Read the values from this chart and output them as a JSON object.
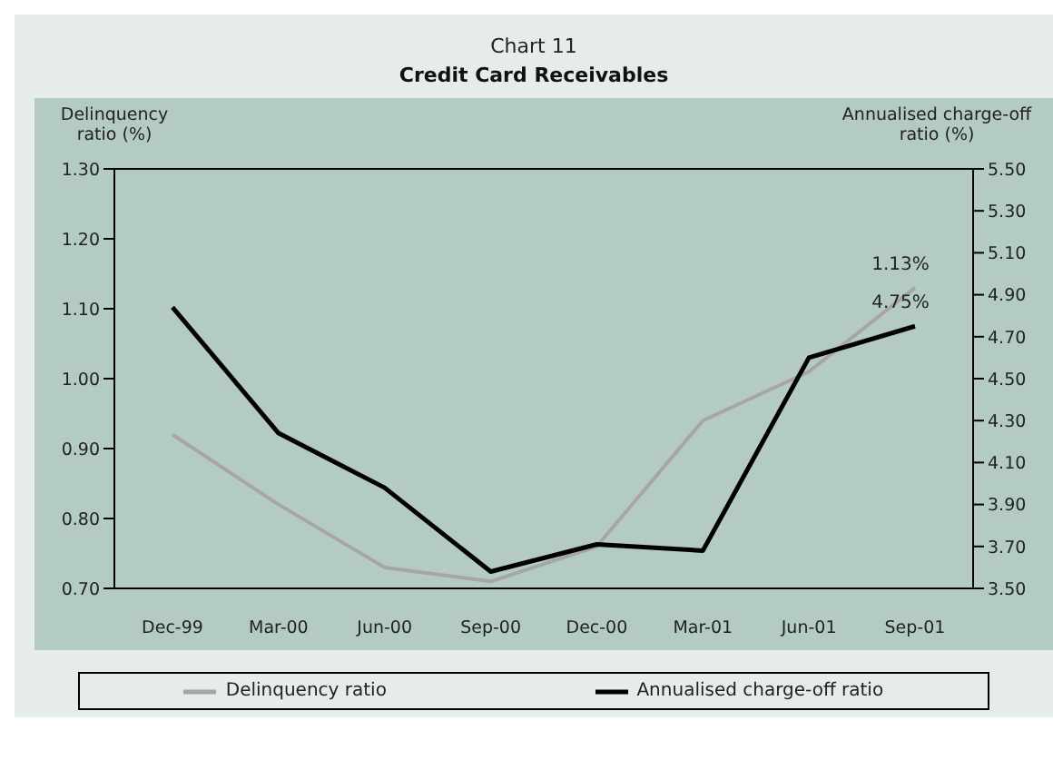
{
  "chart_data": {
    "type": "line",
    "title": "Chart 11",
    "subtitle": "Credit Card Receivables",
    "ylabel": "Delinquency ratio (%)",
    "y2label": "Annualised charge-off ratio (%)",
    "categories": [
      "Dec-99",
      "Mar-00",
      "Jun-00",
      "Sep-00",
      "Dec-00",
      "Mar-01",
      "Jun-01",
      "Sep-01"
    ],
    "series": [
      {
        "name": "Delinquency ratio",
        "color": "#a6a6a6",
        "values": [
          0.92,
          0.82,
          0.73,
          0.71,
          0.76,
          0.94,
          1.01,
          1.13
        ],
        "value_labels": [
          null,
          null,
          null,
          null,
          null,
          null,
          null,
          "1.13%"
        ]
      },
      {
        "name": "Annualised charge-off ratio",
        "color": "#000000",
        "axis": "y2",
        "values": [
          4.84,
          4.24,
          3.98,
          3.58,
          3.71,
          3.68,
          4.6,
          4.75
        ],
        "value_labels": [
          null,
          null,
          null,
          null,
          null,
          null,
          null,
          "4.75%"
        ]
      }
    ],
    "ylim": [
      0.7,
      1.3
    ],
    "yticks": [
      {
        "value": 0.7,
        "label": "0.70"
      },
      {
        "value": 0.8,
        "label": "0.80"
      },
      {
        "value": 0.9,
        "label": "0.90"
      },
      {
        "value": 1.0,
        "label": "1.00"
      },
      {
        "value": 1.1,
        "label": "1.10"
      },
      {
        "value": 1.2,
        "label": "1.20"
      },
      {
        "value": 1.3,
        "label": "1.30"
      }
    ],
    "y2lim": [
      3.5,
      5.5
    ],
    "y2ticks": [
      {
        "value": 3.5,
        "label": "3.50"
      },
      {
        "value": 3.7,
        "label": "3.70"
      },
      {
        "value": 3.9,
        "label": "3.90"
      },
      {
        "value": 4.1,
        "label": "4.10"
      },
      {
        "value": 4.3,
        "label": "4.30"
      },
      {
        "value": 4.5,
        "label": "4.50"
      },
      {
        "value": 4.7,
        "label": "4.70"
      },
      {
        "value": 4.9,
        "label": "4.90"
      },
      {
        "value": 5.1,
        "label": "5.10"
      },
      {
        "value": 5.3,
        "label": "5.30"
      },
      {
        "value": 5.5,
        "label": "5.50"
      }
    ],
    "grid": false,
    "legend": "bottom",
    "marker": "none",
    "line_style": "solid"
  }
}
